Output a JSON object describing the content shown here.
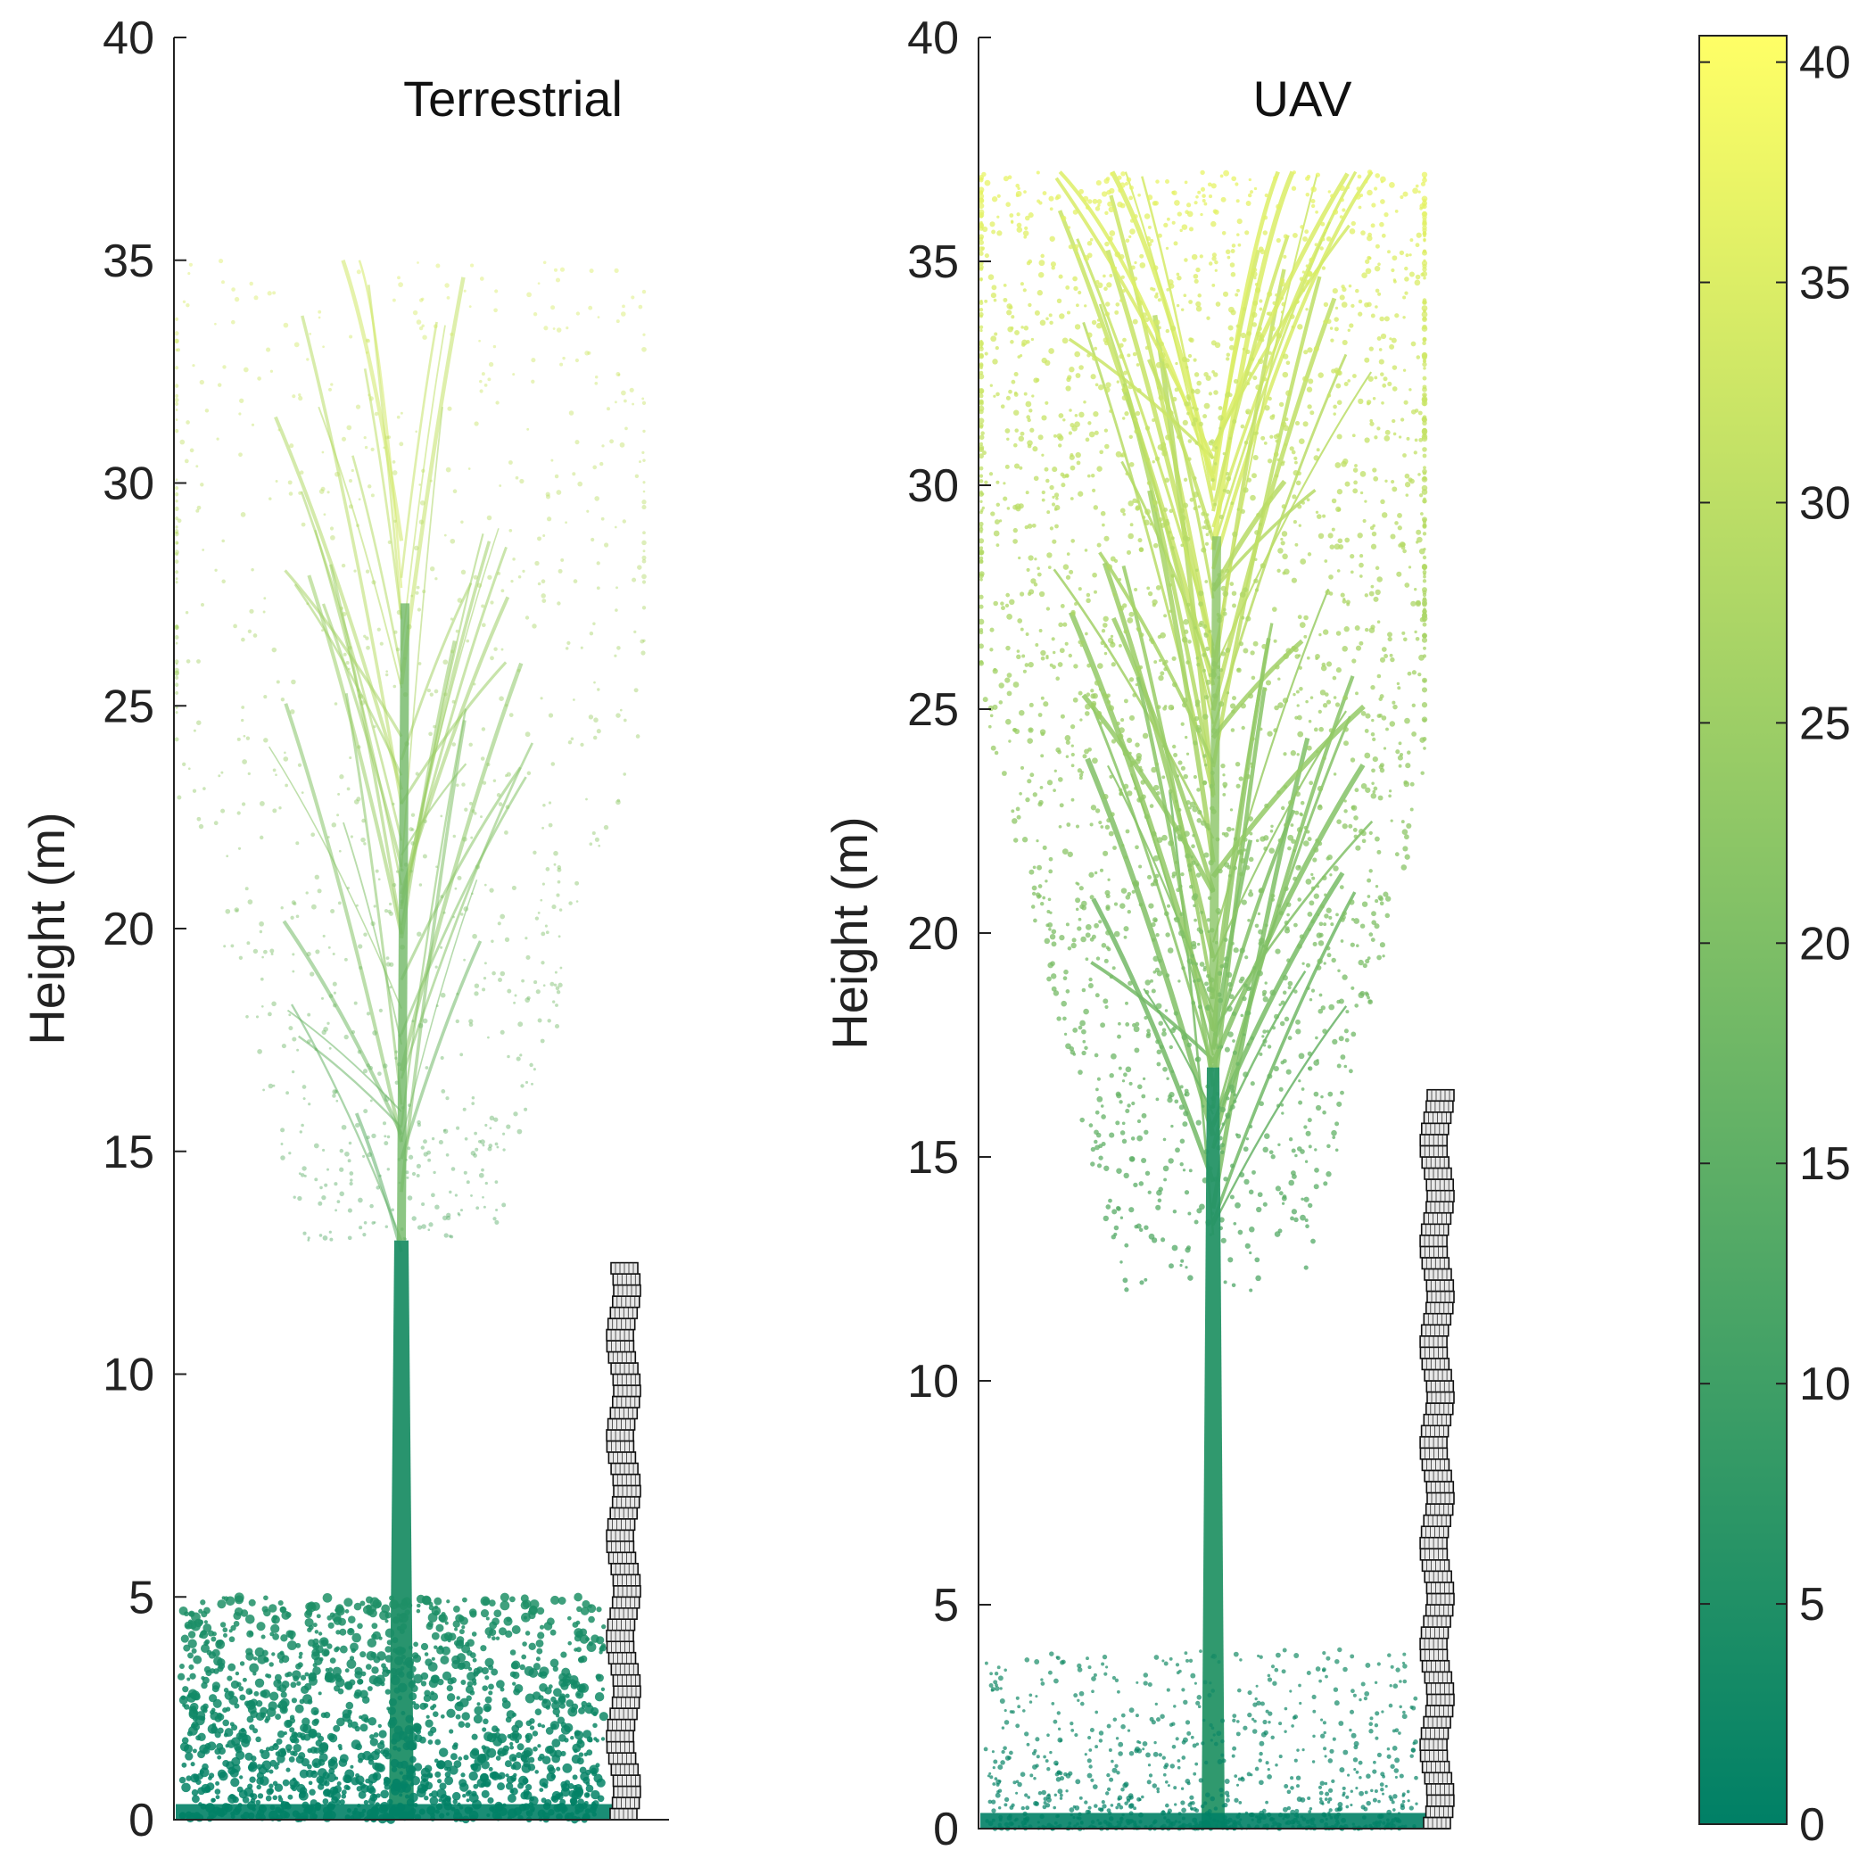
{
  "chart_data": [
    {
      "type": "scatter",
      "title": "Terrestrial",
      "ylabel": "Height (m)",
      "xlabel": "",
      "ylim": [
        0,
        40
      ],
      "yticks": [
        "0",
        "5",
        "10",
        "15",
        "20",
        "25",
        "30",
        "35",
        "40"
      ],
      "point_cloud": {
        "trunk_top_height": 13,
        "branch_start_height": 11,
        "crown_min_height": 13,
        "crown_max_height": 35,
        "understory_max_height": 5,
        "density": "sparse in upper crown"
      },
      "stem_model_height": 12.5
    },
    {
      "type": "scatter",
      "title": "UAV",
      "ylabel": "Height (m)",
      "xlabel": "",
      "ylim": [
        0,
        40
      ],
      "yticks": [
        "0",
        "5",
        "10",
        "15",
        "20",
        "25",
        "30",
        "35",
        "40"
      ],
      "point_cloud": {
        "trunk_top_height": 17,
        "branch_start_height": 12.5,
        "crown_min_height": 12,
        "crown_max_height": 37,
        "understory_max_height": 4,
        "density": "dense in upper crown"
      },
      "stem_model_height": 16.5
    }
  ],
  "colorbar": {
    "range": [
      0,
      40.6
    ],
    "ticks": [
      "0",
      "5",
      "10",
      "15",
      "20",
      "25",
      "30",
      "35",
      "40"
    ],
    "colormap": "summer",
    "color_low": "#008066",
    "color_high": "#ffff66"
  }
}
